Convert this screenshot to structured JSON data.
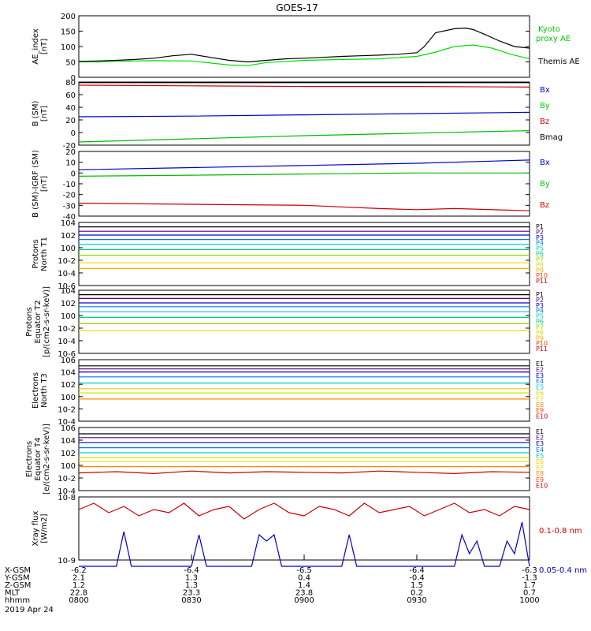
{
  "title": "GOES-17",
  "chart_data": [
    {
      "id": "ae",
      "type": "line",
      "ylabel": [
        "AE_index",
        "[nT]"
      ],
      "ylim": [
        0,
        200
      ],
      "scale": "linear",
      "ticks": [
        0,
        50,
        100,
        150,
        200
      ],
      "tick_labels": [
        "0",
        "50",
        "100",
        "150",
        "200"
      ],
      "series": [
        {
          "name": "Kyoto proxy AE",
          "color": "#00dd00",
          "x": [
            0,
            5,
            10,
            20,
            30,
            40,
            45,
            50,
            60,
            70,
            80,
            90,
            95,
            100,
            105,
            110,
            115,
            120
          ],
          "y": [
            50,
            50,
            52,
            54,
            53,
            40,
            38,
            48,
            55,
            58,
            60,
            68,
            82,
            100,
            105,
            95,
            75,
            60
          ]
        },
        {
          "name": "Themis AE",
          "color": "#000000",
          "x": [
            0,
            5,
            10,
            15,
            20,
            25,
            30,
            35,
            40,
            45,
            50,
            55,
            60,
            65,
            70,
            75,
            80,
            85,
            90,
            92,
            95,
            100,
            103,
            105,
            108,
            112,
            116,
            120
          ],
          "y": [
            52,
            53,
            55,
            58,
            62,
            70,
            75,
            65,
            55,
            50,
            55,
            60,
            62,
            65,
            68,
            70,
            72,
            75,
            80,
            100,
            145,
            158,
            160,
            155,
            140,
            118,
            100,
            95
          ]
        }
      ]
    },
    {
      "id": "bsm",
      "type": "line",
      "ylabel": [
        "B (SM)",
        "[nT]"
      ],
      "ylim": [
        -20,
        80
      ],
      "scale": "linear",
      "ticks": [
        -20,
        0,
        20,
        40,
        60,
        80
      ],
      "tick_labels": [
        "-20",
        "0",
        "20",
        "40",
        "60",
        "80"
      ],
      "series": [
        {
          "name": "Bx",
          "color": "#0000cc",
          "x": [
            0,
            30,
            60,
            90,
            120
          ],
          "y": [
            25,
            26,
            28,
            30,
            32
          ]
        },
        {
          "name": "By",
          "color": "#00bb00",
          "x": [
            0,
            30,
            60,
            90,
            120
          ],
          "y": [
            -15,
            -10,
            -5,
            -1,
            3
          ]
        },
        {
          "name": "Bz",
          "color": "#cc0000",
          "x": [
            0,
            30,
            60,
            90,
            120
          ],
          "y": [
            75,
            74,
            73,
            73,
            72
          ]
        },
        {
          "name": "Bmag",
          "color": "#000000",
          "x": [
            0,
            30,
            60,
            90,
            120
          ],
          "y": [
            79,
            79,
            79,
            79,
            79
          ]
        }
      ]
    },
    {
      "id": "bigrf",
      "type": "line",
      "ylabel": [
        "B (SM)-IGRF (SM)",
        "[nT]"
      ],
      "ylim": [
        -40,
        20
      ],
      "scale": "linear",
      "ticks": [
        -40,
        -30,
        -20,
        -10,
        0,
        10,
        20
      ],
      "tick_labels": [
        "-40",
        "-30",
        "-20",
        "-10",
        "0",
        "10",
        "20"
      ],
      "series": [
        {
          "name": "Bx",
          "color": "#0000cc",
          "x": [
            0,
            30,
            60,
            90,
            120
          ],
          "y": [
            3,
            5,
            7,
            9,
            12
          ]
        },
        {
          "name": "By",
          "color": "#00bb00",
          "x": [
            0,
            30,
            60,
            90,
            120
          ],
          "y": [
            -3,
            -2,
            -1,
            0,
            0
          ]
        },
        {
          "name": "Bz",
          "color": "#cc0000",
          "x": [
            0,
            30,
            60,
            80,
            90,
            100,
            120
          ],
          "y": [
            -28,
            -29,
            -30,
            -33,
            -34,
            -33,
            -35
          ]
        }
      ]
    },
    {
      "id": "pn",
      "type": "line",
      "ylabel": [
        "Protons",
        "North T1"
      ],
      "scale": "log",
      "ylim": [
        -6,
        4
      ],
      "ticks": [
        -6,
        -4,
        -2,
        0,
        2,
        4
      ],
      "tick_labels": [
        "10-6",
        "10-4",
        "10-2",
        "100",
        "102",
        "104"
      ],
      "legend": [
        "P1",
        "P2",
        "P3",
        "P4",
        "P5",
        "P6",
        "P7",
        "P8",
        "P9",
        "P10",
        "P11"
      ],
      "legend_colors": [
        "#000000",
        "#550077",
        "#0000cc",
        "#0077ff",
        "#00cccc",
        "#00cc88",
        "#88dd00",
        "#dddd00",
        "#ffaa00",
        "#ff4400",
        "#cc0000"
      ],
      "series": [
        {
          "name": "P1",
          "color": "#000000",
          "x": [
            0,
            120
          ],
          "y": [
            3.3,
            3.3
          ]
        },
        {
          "name": "P2",
          "color": "#550077",
          "x": [
            0,
            120
          ],
          "y": [
            2.6,
            2.6
          ]
        },
        {
          "name": "P3",
          "color": "#0000cc",
          "x": [
            0,
            120
          ],
          "y": [
            2.0,
            2.0
          ]
        },
        {
          "name": "P4",
          "color": "#0077ff",
          "x": [
            0,
            120
          ],
          "y": [
            1.3,
            1.3
          ]
        },
        {
          "name": "P5",
          "color": "#00cccc",
          "x": [
            0,
            120
          ],
          "y": [
            0.5,
            0.5
          ]
        },
        {
          "name": "P6",
          "color": "#00cc88",
          "x": [
            0,
            120
          ],
          "y": [
            -0.3,
            -0.3
          ]
        },
        {
          "name": "P7",
          "color": "#88dd00",
          "x": [
            0,
            120
          ],
          "y": [
            -1.2,
            -1.2
          ]
        },
        {
          "name": "P8",
          "color": "#dddd00",
          "x": [
            0,
            120
          ],
          "y": [
            -2.4,
            -2.4
          ]
        },
        {
          "name": "P9",
          "color": "#ffaa00",
          "x": [
            0,
            120
          ],
          "y": [
            -3.3,
            -3.3
          ]
        }
      ]
    },
    {
      "id": "pe",
      "type": "line",
      "ylabel": [
        "Protons",
        "Equator T2",
        "[p/(cm2-s-sr-keV)]"
      ],
      "scale": "log",
      "ylim": [
        -6,
        4
      ],
      "ticks": [
        -6,
        -4,
        -2,
        0,
        2,
        4
      ],
      "tick_labels": [
        "10-6",
        "10-4",
        "10-2",
        "100",
        "102",
        "104"
      ],
      "legend": [
        "P1",
        "P2",
        "P3",
        "P4",
        "P5",
        "P6",
        "P7",
        "P8",
        "P9",
        "P10",
        "P11"
      ],
      "legend_colors": [
        "#000000",
        "#550077",
        "#0000cc",
        "#0077ff",
        "#00cccc",
        "#00cc88",
        "#88dd00",
        "#dddd00",
        "#ffaa00",
        "#ff4400",
        "#cc0000"
      ],
      "series": [
        {
          "name": "P1",
          "color": "#000000",
          "x": [
            0,
            120
          ],
          "y": [
            3.3,
            3.3
          ]
        },
        {
          "name": "P2",
          "color": "#550077",
          "x": [
            0,
            120
          ],
          "y": [
            2.7,
            2.7
          ]
        },
        {
          "name": "P3",
          "color": "#0000cc",
          "x": [
            0,
            120
          ],
          "y": [
            2.0,
            2.0
          ]
        },
        {
          "name": "P4",
          "color": "#0077ff",
          "x": [
            0,
            120
          ],
          "y": [
            1.4,
            1.4
          ]
        },
        {
          "name": "P5",
          "color": "#00cccc",
          "x": [
            0,
            120
          ],
          "y": [
            0.6,
            0.6
          ]
        },
        {
          "name": "P6",
          "color": "#00cc88",
          "x": [
            0,
            120
          ],
          "y": [
            -0.3,
            -0.3
          ]
        },
        {
          "name": "P7",
          "color": "#88dd00",
          "x": [
            0,
            120
          ],
          "y": [
            -1.3,
            -1.3
          ]
        },
        {
          "name": "P8",
          "color": "#dddd00",
          "x": [
            0,
            120
          ],
          "y": [
            -2.4,
            -2.4
          ]
        }
      ]
    },
    {
      "id": "en",
      "type": "line",
      "ylabel": [
        "Electrons",
        "North T3"
      ],
      "scale": "log",
      "ylim": [
        -4,
        6
      ],
      "ticks": [
        -4,
        -2,
        0,
        2,
        4,
        6
      ],
      "tick_labels": [
        "10-4",
        "10-2",
        "100",
        "102",
        "104",
        "106"
      ],
      "legend": [
        "E1",
        "E2",
        "E3",
        "E4",
        "E5",
        "E6",
        "E7",
        "E8",
        "E9",
        "E10"
      ],
      "legend_colors": [
        "#000000",
        "#550077",
        "#0000cc",
        "#0077ff",
        "#00cccc",
        "#ffcc00",
        "#dddd00",
        "#ff8800",
        "#ff4400",
        "#cc0000"
      ],
      "series": [
        {
          "name": "E1",
          "color": "#000000",
          "x": [
            0,
            120
          ],
          "y": [
            5.0,
            5.0
          ]
        },
        {
          "name": "E2",
          "color": "#550077",
          "x": [
            0,
            120
          ],
          "y": [
            4.5,
            4.5
          ]
        },
        {
          "name": "E3",
          "color": "#0000cc",
          "x": [
            0,
            120
          ],
          "y": [
            4.0,
            4.0
          ]
        },
        {
          "name": "E4",
          "color": "#0077ff",
          "x": [
            0,
            120
          ],
          "y": [
            3.2,
            3.2
          ]
        },
        {
          "name": "E5",
          "color": "#00cccc",
          "x": [
            0,
            120
          ],
          "y": [
            2.2,
            2.2
          ]
        },
        {
          "name": "E6",
          "color": "#ffcc00",
          "x": [
            0,
            120
          ],
          "y": [
            1.3,
            1.3
          ]
        },
        {
          "name": "E7",
          "color": "#dddd00",
          "x": [
            0,
            120
          ],
          "y": [
            0.6,
            0.6
          ]
        },
        {
          "name": "E8",
          "color": "#ff8800",
          "x": [
            0,
            120
          ],
          "y": [
            -0.4,
            -0.4
          ]
        }
      ]
    },
    {
      "id": "ee",
      "type": "line",
      "ylabel": [
        "Electrons",
        "Equator T4",
        "[e/(cm2-s-sr-keV)]"
      ],
      "scale": "log",
      "ylim": [
        -4,
        6
      ],
      "ticks": [
        -4,
        -2,
        0,
        2,
        4,
        6
      ],
      "tick_labels": [
        "10-4",
        "10-2",
        "100",
        "102",
        "104",
        "106"
      ],
      "legend": [
        "E1",
        "E2",
        "E3",
        "E4",
        "E5",
        "E6",
        "E7",
        "E8",
        "E9",
        "E10"
      ],
      "legend_colors": [
        "#000000",
        "#550077",
        "#0000cc",
        "#0077ff",
        "#00cccc",
        "#ffcc00",
        "#dddd00",
        "#ff8800",
        "#ff4400",
        "#cc0000"
      ],
      "series": [
        {
          "name": "E1",
          "color": "#000000",
          "x": [
            0,
            120
          ],
          "y": [
            5.0,
            5.0
          ]
        },
        {
          "name": "E2",
          "color": "#550077",
          "x": [
            0,
            120
          ],
          "y": [
            4.4,
            4.4
          ]
        },
        {
          "name": "E3",
          "color": "#0000cc",
          "x": [
            0,
            120
          ],
          "y": [
            3.6,
            3.6
          ]
        },
        {
          "name": "E4",
          "color": "#0077ff",
          "x": [
            0,
            120
          ],
          "y": [
            2.8,
            2.8
          ]
        },
        {
          "name": "E5",
          "color": "#00cccc",
          "x": [
            0,
            120
          ],
          "y": [
            2.0,
            2.0
          ]
        },
        {
          "name": "E6",
          "color": "#ffcc00",
          "x": [
            0,
            120
          ],
          "y": [
            1.2,
            1.2
          ]
        },
        {
          "name": "E7",
          "color": "#dddd00",
          "x": [
            0,
            120
          ],
          "y": [
            0.6,
            0.6
          ]
        },
        {
          "name": "E8",
          "color": "#ff8800",
          "x": [
            0,
            120
          ],
          "y": [
            -0.2,
            -0.2
          ]
        },
        {
          "name": "E9",
          "color": "#cc0000",
          "x": [
            0,
            10,
            20,
            30,
            40,
            50,
            60,
            70,
            80,
            90,
            100,
            110,
            120
          ],
          "y": [
            -1.2,
            -1.0,
            -1.3,
            -0.9,
            -1.2,
            -1.0,
            -1.1,
            -1.2,
            -0.9,
            -1.1,
            -1.3,
            -1.0,
            -1.1
          ]
        }
      ]
    },
    {
      "id": "xray",
      "type": "line",
      "ylabel": [
        "Xray flux",
        "[W/m2]"
      ],
      "scale": "log",
      "ylim": [
        -9,
        -8
      ],
      "ticks": [
        -9,
        -8
      ],
      "tick_labels": [
        "10-9",
        "10-8"
      ],
      "legend": [
        "0.1-0.8 nm",
        "0.05-0.4 nm"
      ],
      "legend_colors": [
        "#cc0000",
        "#0000cc"
      ],
      "series": [
        {
          "name": "0.1-0.8 nm",
          "color": "#cc0000",
          "x": [
            0,
            4,
            8,
            12,
            16,
            20,
            24,
            28,
            32,
            36,
            40,
            44,
            48,
            52,
            56,
            60,
            64,
            68,
            72,
            76,
            80,
            84,
            88,
            92,
            96,
            100,
            104,
            108,
            112,
            116,
            120
          ],
          "y": [
            -8.2,
            -8.1,
            -8.25,
            -8.15,
            -8.3,
            -8.2,
            -8.25,
            -8.1,
            -8.3,
            -8.2,
            -8.15,
            -8.35,
            -8.2,
            -8.1,
            -8.25,
            -8.3,
            -8.15,
            -8.2,
            -8.3,
            -8.1,
            -8.25,
            -8.2,
            -8.15,
            -8.3,
            -8.2,
            -8.1,
            -8.25,
            -8.2,
            -8.3,
            -8.15,
            -8.2
          ]
        },
        {
          "name": "0.05-0.4 nm",
          "color": "#0000cc",
          "x": [
            0,
            10,
            12,
            14,
            30,
            32,
            34,
            46,
            48,
            50,
            52,
            54,
            56,
            70,
            72,
            74,
            100,
            102,
            104,
            106,
            108,
            112,
            114,
            116,
            118,
            120
          ],
          "y": [
            -9.1,
            -9.1,
            -8.55,
            -9.1,
            -9.1,
            -8.6,
            -9.1,
            -9.1,
            -8.6,
            -8.7,
            -8.6,
            -9.1,
            -9.1,
            -9.1,
            -8.6,
            -9.1,
            -9.1,
            -8.6,
            -8.9,
            -8.7,
            -9.1,
            -9.1,
            -8.7,
            -8.9,
            -8.4,
            -9.1
          ]
        }
      ]
    }
  ],
  "xaxis": {
    "ticks": [
      0,
      30,
      60,
      90,
      120
    ],
    "rows": [
      {
        "label": "X-GSM",
        "values": [
          "-6.2",
          "-6.4",
          "-6.5",
          "-6.4",
          "-6.3"
        ]
      },
      {
        "label": "Y-GSM",
        "values": [
          "2.1",
          "1.3",
          "0.4",
          "-0.4",
          "-1.3"
        ]
      },
      {
        "label": "Z-GSM",
        "values": [
          "1.2",
          "1.3",
          "1.4",
          "1.5",
          "1.7"
        ]
      },
      {
        "label": "MLT",
        "values": [
          "22.8",
          "23.3",
          "23.8",
          "0.2",
          "0.7"
        ]
      },
      {
        "label": "hhmm",
        "values": [
          "0800",
          "0830",
          "0900",
          "0930",
          "1000"
        ]
      }
    ],
    "date": "2019 Apr 24"
  },
  "legend_labels": {
    "ae": [
      "Kyoto",
      "proxy AE",
      "Themis AE"
    ],
    "bsm": [
      "Bx",
      "By",
      "Bz",
      "Bmag"
    ],
    "bigrf": [
      "Bx",
      "By",
      "Bz"
    ]
  },
  "colors": {
    "axis": "#000000",
    "background": "#ffffff"
  }
}
